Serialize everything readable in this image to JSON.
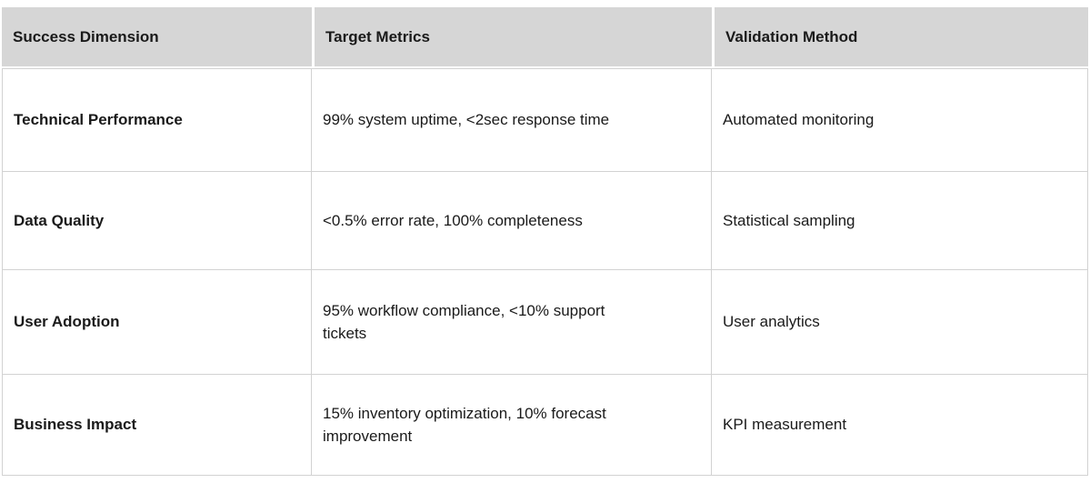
{
  "table": {
    "colors": {
      "header_bg": "#d6d6d6",
      "border": "#d2d2d2",
      "text": "#1a1a1a"
    },
    "columns": [
      {
        "label": "Success Dimension"
      },
      {
        "label": "Target Metrics"
      },
      {
        "label": "Validation Method"
      }
    ],
    "rows": [
      {
        "dimension": "Technical Performance",
        "metrics": "99% system uptime, <2sec response time",
        "validation": "Automated monitoring"
      },
      {
        "dimension": "Data Quality",
        "metrics": "<0.5% error rate, 100% completeness",
        "validation": "Statistical sampling"
      },
      {
        "dimension": "User Adoption",
        "metrics": "95% workflow compliance, <10% support tickets",
        "validation": "User analytics"
      },
      {
        "dimension": "Business Impact",
        "metrics": "15% inventory optimization, 10% forecast improvement",
        "validation": "KPI measurement"
      }
    ]
  }
}
